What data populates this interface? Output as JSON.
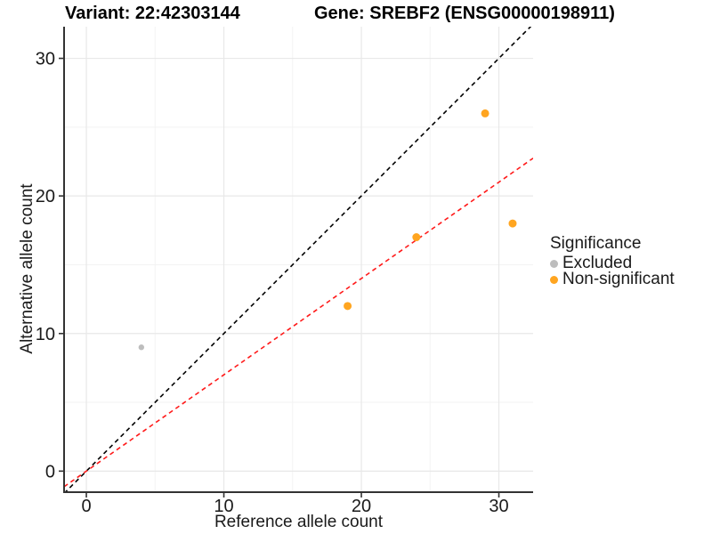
{
  "header": {
    "variant_title": "Variant: 22:42303144",
    "gene_title": "Gene: SREBF2 (ENSG00000198911)"
  },
  "chart_data": {
    "type": "scatter",
    "xlabel": "Reference allele count",
    "ylabel": "Alternative allele count",
    "xlim": [
      -1.62,
      32.49
    ],
    "ylim": [
      -1.53,
      32.3
    ],
    "x_ticks": [
      0,
      10,
      20,
      30
    ],
    "y_ticks": [
      0,
      10,
      20,
      30
    ],
    "x_minor_ticks": [
      5,
      15,
      25
    ],
    "y_minor_ticks": [
      5,
      15,
      25
    ],
    "grid": true,
    "series": [
      {
        "name": "Excluded",
        "color": "#BDBDBD",
        "radius": 3.2,
        "points": [
          [
            4,
            9
          ]
        ]
      },
      {
        "name": "Non-significant",
        "color": "#FFA520",
        "radius": 4.5,
        "points": [
          [
            19,
            12
          ],
          [
            24,
            17
          ],
          [
            29,
            26
          ],
          [
            31,
            18
          ]
        ]
      }
    ],
    "lines": [
      {
        "name": "identity-line",
        "slope": 1.0,
        "intercept": 0,
        "color": "#000000",
        "dash": "dashed"
      },
      {
        "name": "fit-line",
        "slope": 0.7,
        "intercept": 0,
        "color": "#FF1A1A",
        "dash": "dashed"
      }
    ],
    "legend": {
      "title": "Significance",
      "position": "right",
      "items": [
        {
          "label": "Excluded",
          "color": "#BDBDBD"
        },
        {
          "label": "Non-significant",
          "color": "#FFA520"
        }
      ]
    },
    "colors": {
      "axis_line": "#333333",
      "tick_text": "#1a1a1a",
      "grid_major": "#e8e8e8",
      "grid_minor": "#f3f3f3"
    }
  }
}
